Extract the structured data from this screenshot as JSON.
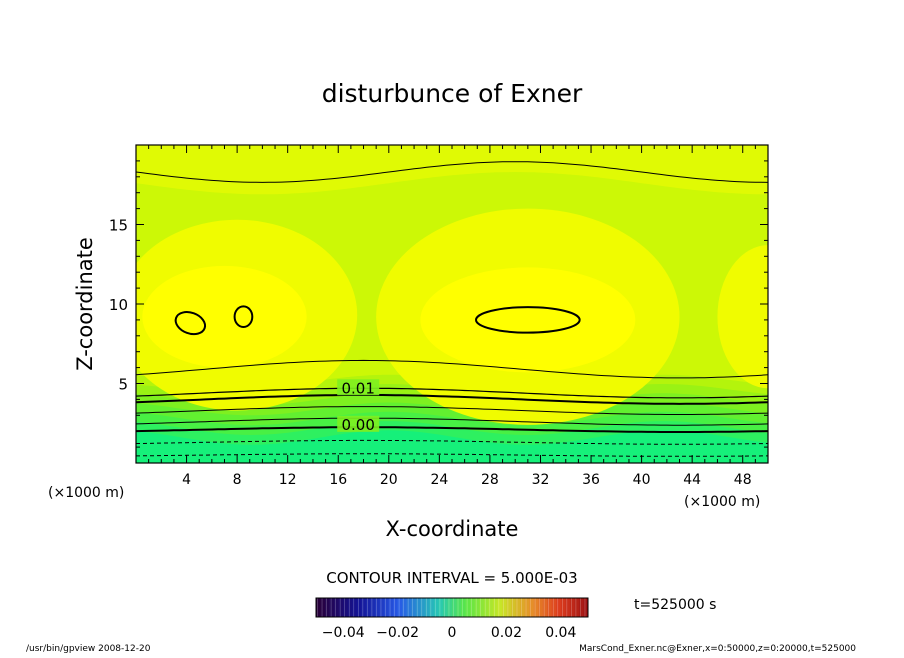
{
  "chart_data": {
    "type": "heatmap",
    "title": "disturbunce of Exner",
    "xlabel": "X-coordinate",
    "ylabel": "Z-coordinate",
    "x_unit_left": "(×1000 m)",
    "x_unit_right": "(×1000 m)",
    "xlim": [
      0,
      50
    ],
    "ylim": [
      0,
      20
    ],
    "x_ticks": [
      "4",
      "8",
      "12",
      "16",
      "20",
      "24",
      "28",
      "32",
      "36",
      "40",
      "44",
      "48"
    ],
    "y_ticks": [
      "5",
      "10",
      "15"
    ],
    "x_tick_values": [
      4,
      8,
      12,
      16,
      20,
      24,
      28,
      32,
      36,
      40,
      44,
      48
    ],
    "y_tick_values": [
      5,
      10,
      15
    ],
    "contour_interval_label": "CONTOUR INTERVAL = 5.000E-03",
    "contour_labels": [
      {
        "text": "0.01",
        "x": 17.5,
        "z": 4.7
      },
      {
        "text": "0.00",
        "x": 17.5,
        "z": 2.4
      }
    ],
    "colorbar": {
      "ticks": [
        "−0.04",
        "−0.02",
        "0",
        "0.02",
        "0.04"
      ],
      "tick_values": [
        -0.04,
        -0.02,
        0,
        0.02,
        0.04
      ],
      "range": [
        -0.05,
        0.05
      ]
    },
    "time_label": "t=525000 s",
    "footer_left": "/usr/bin/gpview   2008-12-20",
    "footer_right": "MarsCond_Exner.nc@Exner,x=0:50000,z=0:20000,t=525000",
    "band_colors": [
      "#16f07a",
      "#2ef060",
      "#48f044",
      "#62f030",
      "#7ef020",
      "#9af214",
      "#b4f40c",
      "#ccf806",
      "#e0fa04",
      "#f0fc00",
      "#ffff00"
    ]
  }
}
